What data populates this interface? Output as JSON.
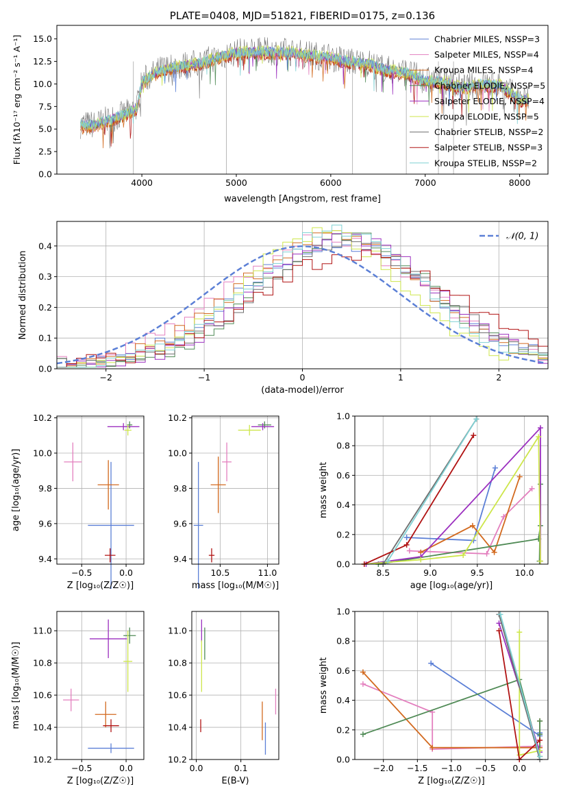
{
  "colors": {
    "chabrier_miles": "#5b7fd6",
    "salpeter_miles": "#e37fbe",
    "kroupa_miles": "#d2691e",
    "chabrier_elodie": "#4f8a55",
    "salpeter_elodie": "#9b2fbf",
    "kroupa_elodie": "#cde64a",
    "chabrier_stelib": "#6e6e6e",
    "salpeter_stelib": "#b01212",
    "kroupa_stelib": "#7fd1d4",
    "normal_curve": "#5b7fd6",
    "spectrum_top": "#808080"
  },
  "chart_data": [
    {
      "id": "spectrum",
      "type": "line",
      "title": "PLATE=0408, MJD=51821, FIBERID=0175, z=0.136",
      "xlabel": "wavelength [Angstrom, rest frame]",
      "ylabel": "Flux [fλ10⁻¹⁷ erg cm⁻² s⁻¹ A⁻¹]",
      "xlim": [
        3100,
        8300
      ],
      "ylim": [
        0,
        16.5
      ],
      "xticks": [
        "4000",
        "5000",
        "6000",
        "7000",
        "8000"
      ],
      "yticks": [
        "0.0",
        "2.5",
        "5.0",
        "7.5",
        "10.0",
        "12.5",
        "15.0"
      ],
      "grid": false,
      "legend_position": "top-right",
      "legend": [
        {
          "name": "Chabrier MILES, NSSP=3",
          "color_key": "chabrier_miles"
        },
        {
          "name": "Salpeter MILES, NSSP=4",
          "color_key": "salpeter_miles"
        },
        {
          "name": "Kroupa MILES, NSSP=4",
          "color_key": "kroupa_miles"
        },
        {
          "name": "Chabrier ELODIE, NSSP=5",
          "color_key": "chabrier_elodie"
        },
        {
          "name": "Salpeter ELODIE, NSSP=4",
          "color_key": "salpeter_elodie"
        },
        {
          "name": "Kroupa ELODIE, NSSP=5",
          "color_key": "kroupa_elodie"
        },
        {
          "name": "Chabrier STELIB, NSSP=2",
          "color_key": "chabrier_stelib"
        },
        {
          "name": "Salpeter STELIB, NSSP=3",
          "color_key": "salpeter_stelib"
        },
        {
          "name": "Kroupa STELIB, NSSP=2",
          "color_key": "kroupa_stelib"
        }
      ],
      "envelope": {
        "x": [
          3350,
          3500,
          3700,
          3850,
          3950,
          4000,
          4200,
          4400,
          4600,
          4800,
          5000,
          5200,
          5400,
          5600,
          5800,
          6000,
          6200,
          6400,
          6600,
          6800,
          7000,
          7200,
          7400,
          7600,
          7800,
          8000,
          8100
        ],
        "y": [
          5.5,
          5.5,
          6.2,
          6.8,
          7.5,
          10.3,
          11.6,
          12.0,
          12.3,
          13.0,
          13.5,
          13.6,
          13.6,
          13.5,
          13.2,
          13.0,
          12.5,
          12.3,
          11.6,
          11.3,
          10.4,
          10.3,
          9.6,
          10.0,
          9.9,
          8.3,
          8.3
        ]
      },
      "vertical_lines_x": [
        3910,
        4895,
        6230,
        6800,
        7140,
        7300
      ]
    },
    {
      "id": "residuals",
      "type": "histogram",
      "xlabel": "(data-model)/error",
      "ylabel": "Normed distribution",
      "xlim": [
        -2.5,
        2.5
      ],
      "ylim": [
        0,
        0.48
      ],
      "xticks": [
        "−2",
        "−1",
        "0",
        "1",
        "2"
      ],
      "yticks": [
        "0.0",
        "0.1",
        "0.2",
        "0.3",
        "0.4"
      ],
      "grid": true,
      "legend_position": "top-right",
      "legend": [
        {
          "name": "𝒩(0, 1)",
          "color_key": "normal_curve",
          "style": "dashed"
        }
      ],
      "bin_width": 0.1,
      "series": [
        {
          "color_key": "chabrier_miles",
          "peak": 0.4,
          "center": 0.35,
          "width": 0.95,
          "phase": 0
        },
        {
          "color_key": "salpeter_miles",
          "peak": 0.41,
          "center": 0.25,
          "width": 1.0,
          "phase": 1
        },
        {
          "color_key": "kroupa_miles",
          "peak": 0.42,
          "center": 0.3,
          "width": 0.95,
          "phase": 2
        },
        {
          "color_key": "chabrier_elodie",
          "peak": 0.43,
          "center": 0.45,
          "width": 0.85,
          "phase": 3
        },
        {
          "color_key": "salpeter_elodie",
          "peak": 0.42,
          "center": 0.45,
          "width": 0.88,
          "phase": 4
        },
        {
          "color_key": "kroupa_elodie",
          "peak": 0.43,
          "center": 0.2,
          "width": 0.85,
          "phase": 5
        },
        {
          "color_key": "chabrier_stelib",
          "peak": 0.4,
          "center": 0.45,
          "width": 0.92,
          "phase": 6
        },
        {
          "color_key": "salpeter_stelib",
          "peak": 0.36,
          "center": 0.55,
          "width": 1.05,
          "phase": 7
        },
        {
          "color_key": "kroupa_stelib",
          "peak": 0.44,
          "center": 0.35,
          "width": 0.86,
          "phase": 8
        }
      ]
    },
    {
      "id": "age-vs-Z",
      "type": "errorbar",
      "xlabel": "Z [log₁₀(Z/Z☉)]",
      "ylabel": "age  [log₁₀(age/yr)]",
      "xlim": [
        -0.78,
        0.2
      ],
      "ylim": [
        9.37,
        10.21
      ],
      "xticks": [
        -0.5,
        0.0
      ],
      "xtick_labels": [
        "−0.5",
        "0.0"
      ],
      "yticks": [
        9.4,
        9.6,
        9.8,
        10.0,
        10.2
      ],
      "ytick_labels": [
        "9.4",
        "9.6",
        "9.8",
        "10.0",
        "10.2"
      ],
      "grid": true,
      "points": [
        {
          "color_key": "chabrier_miles",
          "x": -0.17,
          "y": 9.59,
          "xerr": 0.26,
          "yerr": 0.36
        },
        {
          "color_key": "salpeter_miles",
          "x": -0.6,
          "y": 9.95,
          "xerr": 0.1,
          "yerr": 0.11
        },
        {
          "color_key": "kroupa_miles",
          "x": -0.2,
          "y": 9.82,
          "xerr": 0.12,
          "yerr": 0.14
        },
        {
          "color_key": "chabrier_elodie",
          "x": 0.04,
          "y": 10.16,
          "xerr": 0.03,
          "yerr": 0.02
        },
        {
          "color_key": "salpeter_elodie",
          "x": -0.03,
          "y": 10.15,
          "xerr": 0.18,
          "yerr": 0.02
        },
        {
          "color_key": "kroupa_elodie",
          "x": 0.02,
          "y": 10.13,
          "xerr": 0.04,
          "yerr": 0.03
        },
        {
          "color_key": "salpeter_stelib",
          "x": -0.18,
          "y": 9.42,
          "xerr": 0.06,
          "yerr": 0.04
        }
      ]
    },
    {
      "id": "age-vs-mass",
      "type": "errorbar",
      "xlabel": "mass [log₁₀(M/M☉)]",
      "ylabel": "",
      "xlim": [
        10.2,
        11.12
      ],
      "ylim": [
        9.37,
        10.21
      ],
      "xticks": [
        10.5,
        11.0
      ],
      "xtick_labels": [
        "10.5",
        "11.0"
      ],
      "yticks": [
        9.4,
        9.6,
        9.8,
        10.0,
        10.2
      ],
      "ytick_labels": [
        "9.4",
        "9.6",
        "9.8",
        "10.0",
        "10.2"
      ],
      "grid": true,
      "points": [
        {
          "color_key": "chabrier_miles",
          "x": 10.27,
          "y": 9.59,
          "xerr": 0.05,
          "yerr": 0.36
        },
        {
          "color_key": "salpeter_miles",
          "x": 10.57,
          "y": 9.95,
          "xerr": 0.05,
          "yerr": 0.11
        },
        {
          "color_key": "kroupa_miles",
          "x": 10.48,
          "y": 9.82,
          "xerr": 0.08,
          "yerr": 0.16
        },
        {
          "color_key": "chabrier_elodie",
          "x": 10.97,
          "y": 10.16,
          "xerr": 0.07,
          "yerr": 0.02
        },
        {
          "color_key": "salpeter_elodie",
          "x": 10.95,
          "y": 10.15,
          "xerr": 0.12,
          "yerr": 0.02
        },
        {
          "color_key": "kroupa_elodie",
          "x": 10.81,
          "y": 10.13,
          "xerr": 0.12,
          "yerr": 0.03
        },
        {
          "color_key": "salpeter_stelib",
          "x": 10.41,
          "y": 9.42,
          "xerr": 0.03,
          "yerr": 0.04
        }
      ]
    },
    {
      "id": "mass-weight-vs-age",
      "type": "line",
      "xlabel": "age  [log₁₀(age/yr)]",
      "ylabel": "mass weight",
      "xlim": [
        8.2,
        10.25
      ],
      "ylim": [
        0,
        1
      ],
      "xticks": [
        8.5,
        9.0,
        9.5,
        10.0
      ],
      "xtick_labels": [
        "8.5",
        "9.0",
        "9.5",
        "10.0"
      ],
      "yticks": [
        0,
        0.2,
        0.4,
        0.6,
        0.8,
        1.0
      ],
      "ytick_labels": [
        "0.0",
        "0.2",
        "0.4",
        "0.6",
        "0.8",
        "1.0"
      ],
      "grid": true,
      "series": [
        {
          "color_key": "chabrier_miles",
          "x": [
            8.75,
            9.46,
            9.69
          ],
          "y": [
            0.18,
            0.16,
            0.65
          ]
        },
        {
          "color_key": "salpeter_miles",
          "x": [
            8.78,
            9.6,
            9.78,
            10.08
          ],
          "y": [
            0.09,
            0.07,
            0.32,
            0.51
          ]
        },
        {
          "color_key": "kroupa_miles",
          "x": [
            8.9,
            9.45,
            9.68,
            9.95
          ],
          "y": [
            0.08,
            0.26,
            0.08,
            0.59
          ]
        },
        {
          "color_key": "chabrier_elodie",
          "x": [
            8.45,
            10.15,
            10.17,
            10.17,
            10.16
          ],
          "y": [
            0.0,
            0.17,
            0.26,
            0.54,
            0.02
          ]
        },
        {
          "color_key": "salpeter_elodie",
          "x": [
            8.32,
            8.9,
            10.17,
            10.17
          ],
          "y": [
            0.0,
            0.05,
            0.92,
            0.02
          ]
        },
        {
          "color_key": "kroupa_elodie",
          "x": [
            8.3,
            8.9,
            9.35,
            10.15,
            10.17
          ],
          "y": [
            0.0,
            0.03,
            0.06,
            0.86,
            0.02
          ]
        },
        {
          "color_key": "chabrier_stelib",
          "x": [
            8.5,
            9.49
          ],
          "y": [
            0.0,
            0.98
          ]
        },
        {
          "color_key": "salpeter_stelib",
          "x": [
            8.3,
            8.75,
            9.46
          ],
          "y": [
            0.0,
            0.13,
            0.87
          ]
        },
        {
          "color_key": "kroupa_stelib",
          "x": [
            8.55,
            9.49
          ],
          "y": [
            0.02,
            0.98
          ]
        }
      ]
    },
    {
      "id": "mass-vs-Z",
      "type": "errorbar",
      "xlabel": "Z [log₁₀(Z/Z☉)]",
      "ylabel": "mass [log₁₀(M/M☉)]",
      "xlim": [
        -0.78,
        0.2
      ],
      "ylim": [
        10.2,
        11.12
      ],
      "xticks": [
        -0.5,
        0.0
      ],
      "xtick_labels": [
        "−0.5",
        "0.0"
      ],
      "yticks": [
        10.2,
        10.4,
        10.6,
        10.8,
        11.0
      ],
      "ytick_labels": [
        "10.2",
        "10.4",
        "10.6",
        "10.8",
        "11.0"
      ],
      "grid": true,
      "points": [
        {
          "color_key": "chabrier_miles",
          "x": -0.17,
          "y": 10.27,
          "xerr": 0.26,
          "yerr": 0.03
        },
        {
          "color_key": "salpeter_miles",
          "x": -0.62,
          "y": 10.57,
          "xerr": 0.09,
          "yerr": 0.07
        },
        {
          "color_key": "kroupa_miles",
          "x": -0.23,
          "y": 10.48,
          "xerr": 0.12,
          "yerr": 0.08
        },
        {
          "color_key": "chabrier_elodie",
          "x": 0.04,
          "y": 10.97,
          "xerr": 0.07,
          "yerr": 0.05
        },
        {
          "color_key": "salpeter_elodie",
          "x": -0.2,
          "y": 10.95,
          "xerr": 0.21,
          "yerr": 0.12
        },
        {
          "color_key": "kroupa_elodie",
          "x": 0.02,
          "y": 10.81,
          "xerr": 0.05,
          "yerr": 0.19
        },
        {
          "color_key": "salpeter_stelib",
          "x": -0.17,
          "y": 10.41,
          "xerr": 0.09,
          "yerr": 0.04
        }
      ]
    },
    {
      "id": "mass-vs-ebv",
      "type": "errorbar",
      "xlabel": "E(B-V)",
      "ylabel": "",
      "xlim": [
        -0.01,
        0.185
      ],
      "ylim": [
        10.2,
        11.12
      ],
      "xticks": [
        0.0,
        0.1
      ],
      "xtick_labels": [
        "0.0",
        "0.1"
      ],
      "yticks": [
        10.2,
        10.4,
        10.6,
        10.8,
        11.0
      ],
      "ytick_labels": [
        "10.2",
        "10.4",
        "10.6",
        "10.8",
        "11.0"
      ],
      "grid": true,
      "points": [
        {
          "color_key": "chabrier_miles",
          "x": 0.155,
          "y": 10.33,
          "xerr": 0.0,
          "yerr": 0.1
        },
        {
          "color_key": "salpeter_miles",
          "x": 0.178,
          "y": 10.56,
          "xerr": 0.0,
          "yerr": 0.08
        },
        {
          "color_key": "kroupa_miles",
          "x": 0.148,
          "y": 10.44,
          "xerr": 0.0,
          "yerr": 0.12
        },
        {
          "color_key": "chabrier_elodie",
          "x": 0.019,
          "y": 10.92,
          "xerr": 0.0,
          "yerr": 0.1
        },
        {
          "color_key": "salpeter_elodie",
          "x": 0.012,
          "y": 11.0,
          "xerr": 0.0,
          "yerr": 0.07
        },
        {
          "color_key": "kroupa_elodie",
          "x": 0.012,
          "y": 10.78,
          "xerr": 0.0,
          "yerr": 0.16
        },
        {
          "color_key": "salpeter_stelib",
          "x": 0.01,
          "y": 10.41,
          "xerr": 0.0,
          "yerr": 0.04
        }
      ]
    },
    {
      "id": "mass-weight-vs-Z",
      "type": "line",
      "xlabel": "Z [log₁₀(Z/Z☉)]",
      "ylabel": "mass weight",
      "xlim": [
        -2.42,
        0.42
      ],
      "ylim": [
        0,
        1
      ],
      "xticks": [
        -2.0,
        -1.5,
        -1.0,
        -0.5,
        0.0
      ],
      "xtick_labels": [
        "−2.0",
        "−1.5",
        "−1.0",
        "−0.5",
        "0.0"
      ],
      "yticks": [
        0,
        0.2,
        0.4,
        0.6,
        0.8,
        1.0
      ],
      "ytick_labels": [
        "0.0",
        "0.2",
        "0.4",
        "0.6",
        "0.8",
        "1.0"
      ],
      "grid": true,
      "series": [
        {
          "color_key": "chabrier_miles",
          "x": [
            -1.3,
            0.3,
            0.3
          ],
          "y": [
            0.65,
            0.16,
            0.18
          ]
        },
        {
          "color_key": "salpeter_miles",
          "x": [
            -2.3,
            -1.28,
            -1.28,
            0.3
          ],
          "y": [
            0.51,
            0.32,
            0.07,
            0.09
          ]
        },
        {
          "color_key": "kroupa_miles",
          "x": [
            -2.3,
            -1.28,
            0.3,
            0.3
          ],
          "y": [
            0.59,
            0.08,
            0.08,
            0.26
          ]
        },
        {
          "color_key": "chabrier_elodie",
          "x": [
            -2.3,
            0.0,
            0.3,
            0.3,
            0.3
          ],
          "y": [
            0.17,
            0.54,
            0.02,
            0.26,
            0.17
          ]
        },
        {
          "color_key": "salpeter_elodie",
          "x": [
            -0.3,
            0.3,
            0.3
          ],
          "y": [
            0.92,
            0.05,
            0.02
          ]
        },
        {
          "color_key": "kroupa_elodie",
          "x": [
            0.0,
            0.0,
            0.3,
            0.3
          ],
          "y": [
            0.86,
            0.03,
            0.06,
            0.02
          ]
        },
        {
          "color_key": "chabrier_stelib",
          "x": [
            -0.3,
            0.3
          ],
          "y": [
            0.98,
            0.0
          ]
        },
        {
          "color_key": "salpeter_stelib",
          "x": [
            -0.3,
            0.0,
            0.3
          ],
          "y": [
            0.87,
            0.0,
            0.13
          ]
        },
        {
          "color_key": "kroupa_stelib",
          "x": [
            -0.28,
            0.3
          ],
          "y": [
            0.98,
            0.02
          ]
        }
      ]
    }
  ]
}
